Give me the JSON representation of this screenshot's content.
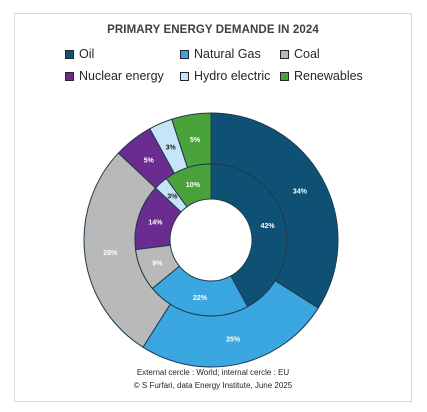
{
  "chart_data": {
    "type": "donut",
    "title": "PRIMARY ENERGY DEMANDE IN 2024",
    "categories": [
      "Oil",
      "Natural Gas",
      "Coal",
      "Nuclear energy",
      "Hydro electric",
      "Renewables"
    ],
    "colors": [
      "#0f5175",
      "#3aa7e0",
      "#b9b9b9",
      "#6a2c91",
      "#c6e6f8",
      "#4aa23a"
    ],
    "series": [
      {
        "values": [
          34,
          25,
          28,
          5,
          3,
          5
        ],
        "labels": [
          "34%",
          "25%",
          "28%",
          "5%",
          "3%",
          "5%"
        ]
      },
      {
        "values": [
          42,
          22,
          9,
          14,
          3,
          10
        ],
        "labels": [
          "42%",
          "22%",
          "9%",
          "14%",
          "3%",
          "10%"
        ]
      }
    ],
    "legend_position": "top"
  },
  "footer": {
    "line1": "External cercle : World; internal cercle : EU",
    "line2": "© S Furfari, data Energy Institute, June 2025"
  }
}
